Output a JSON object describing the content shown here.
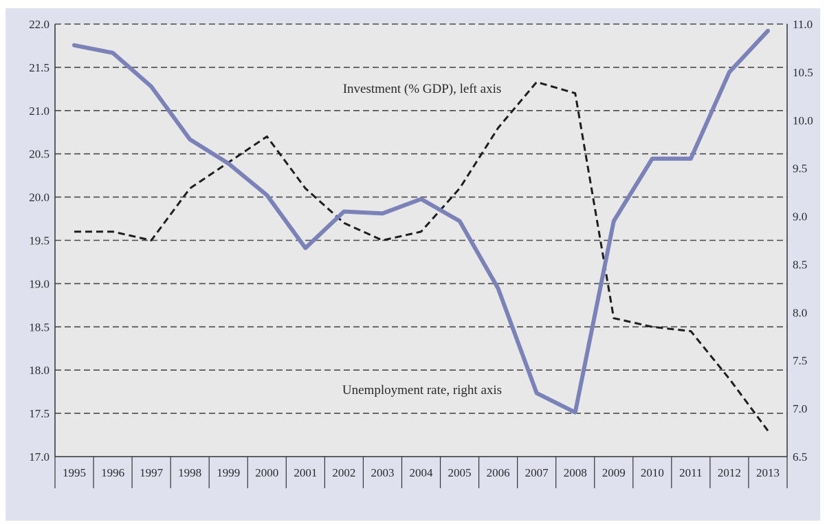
{
  "chart_data": {
    "type": "line",
    "x": [
      "1995",
      "1996",
      "1997",
      "1998",
      "1999",
      "2000",
      "2001",
      "2002",
      "2003",
      "2004",
      "2005",
      "2006",
      "2007",
      "2008",
      "2009",
      "2010",
      "2011",
      "2012",
      "2013"
    ],
    "series": [
      {
        "name": "Investment (% GDP), left axis",
        "axis": "left",
        "style": "dashed",
        "color": "#1e1e1e",
        "values": [
          19.6,
          19.6,
          19.5,
          20.1,
          20.4,
          20.7,
          20.1,
          19.7,
          19.5,
          19.6,
          20.1,
          20.8,
          21.33,
          21.2,
          18.6,
          18.5,
          18.45,
          17.9,
          17.3
        ]
      },
      {
        "name": "Unemployment rate, right axis",
        "axis": "right",
        "style": "solid",
        "color": "#7b82b8",
        "values": [
          10.78,
          10.7,
          10.35,
          9.8,
          9.55,
          9.22,
          8.67,
          9.05,
          9.03,
          9.18,
          8.95,
          8.25,
          7.16,
          6.96,
          8.95,
          9.6,
          9.6,
          10.5,
          10.93
        ]
      }
    ],
    "ylim_left": [
      17.0,
      22.0
    ],
    "yticks_left": [
      "17.0",
      "17.5",
      "18.0",
      "18.5",
      "19.0",
      "19.5",
      "20.0",
      "20.5",
      "21.0",
      "21.5",
      "22.0"
    ],
    "ylim_right": [
      6.5,
      11.0
    ],
    "yticks_right": [
      "6.5",
      "7.0",
      "7.5",
      "8.0",
      "8.5",
      "9.0",
      "9.5",
      "10.0",
      "10.5",
      "11.0"
    ],
    "grid": "horizontal dashed",
    "background": "#e8e8e8",
    "panel_background": "#dfe1ef",
    "annotations": [
      {
        "text": "Investment (% GDP), left axis"
      },
      {
        "text": "Unemployment rate, right axis"
      }
    ]
  }
}
